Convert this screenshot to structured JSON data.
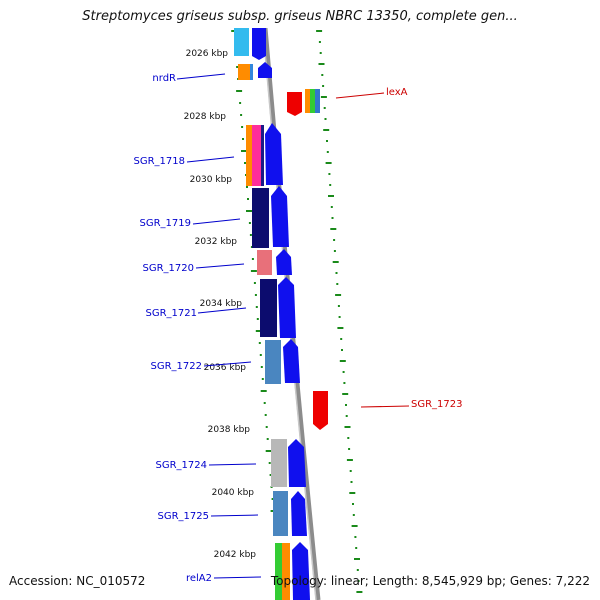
{
  "title": "Streptomyces griseus subsp. griseus NBRC 13350, complete gen...",
  "footer": {
    "accession": "Accession: NC_010572",
    "summary": "Topology: linear; Length: 8,545,929 bp; Genes: 7,222"
  },
  "colors": {
    "forward": "#0000ff",
    "reverse": "#ff0000",
    "gene_label_left": "#0000cc",
    "gene_label_right": "#cc0000",
    "backbone": "#909090",
    "dots": "#1a8a1a"
  },
  "kbp_marks": [
    "2026 kbp",
    "2028 kbp",
    "2030 kbp",
    "2032 kbp",
    "2034 kbp",
    "2036 kbp",
    "2038 kbp",
    "2040 kbp",
    "2042 kbp"
  ],
  "genes_left": [
    {
      "name": "nrdR"
    },
    {
      "name": "SGR_1718"
    },
    {
      "name": "SGR_1719"
    },
    {
      "name": "SGR_1720"
    },
    {
      "name": "SGR_1721"
    },
    {
      "name": "SGR_1722"
    },
    {
      "name": "SGR_1724"
    },
    {
      "name": "SGR_1725"
    },
    {
      "name": "relA2"
    }
  ],
  "genes_right": [
    {
      "name": "lexA"
    },
    {
      "name": "SGR_1723"
    }
  ]
}
